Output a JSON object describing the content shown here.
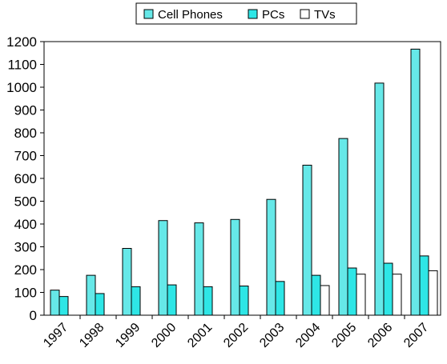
{
  "chart_data": {
    "type": "bar",
    "categories": [
      "1997",
      "1998",
      "1999",
      "2000",
      "2001",
      "2002",
      "2003",
      "2004",
      "2005",
      "2006",
      "2007"
    ],
    "series": [
      {
        "name": "Cell Phones",
        "color": "#66e8e8",
        "values": [
          110,
          175,
          293,
          415,
          405,
          420,
          508,
          658,
          775,
          1018,
          1167
        ]
      },
      {
        "name": "PCs",
        "color": "#2ee6e6",
        "values": [
          82,
          95,
          125,
          133,
          125,
          128,
          148,
          175,
          207,
          228,
          260
        ]
      },
      {
        "name": "TVs",
        "color": "#ffffff",
        "values": [
          0,
          0,
          0,
          0,
          0,
          0,
          0,
          130,
          180,
          180,
          195
        ]
      }
    ],
    "ylim": [
      0,
      1200
    ],
    "yticks": [
      0,
      100,
      200,
      300,
      400,
      500,
      600,
      700,
      800,
      900,
      1000,
      1100,
      1200
    ],
    "title": "",
    "xlabel": "",
    "ylabel": "",
    "grid": false,
    "legend_position": "top"
  }
}
